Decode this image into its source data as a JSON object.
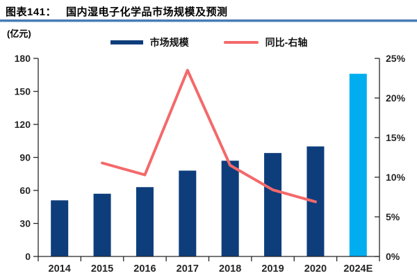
{
  "header": {
    "figure_label": "图表141：",
    "title": "国内湿电子化学品市场规模及预测"
  },
  "axis_unit_label": "(亿元)",
  "legend": [
    {
      "label": "市场规模",
      "marker": "bar-swatch",
      "color": "#0E3D7C"
    },
    {
      "label": "同比-右轴",
      "marker": "line-swatch",
      "color": "#F4696B"
    }
  ],
  "colors": {
    "bar": "#0E3D7C",
    "bar_highlight": "#00AEEF",
    "line": "#F4696B",
    "rule_dark": "#4A7CB5",
    "rule_light": "#9CC2E5",
    "axis": "#262626",
    "text": "#262626"
  },
  "chart_data": {
    "type": "combo",
    "title": "国内湿电子化学品市场规模及预测",
    "categories": [
      "2014",
      "2015",
      "2016",
      "2017",
      "2018",
      "2019",
      "2020",
      "2024E"
    ],
    "series": [
      {
        "name": "市场规模",
        "type": "bar",
        "axis": "left",
        "unit": "亿元",
        "values": [
          51,
          57,
          63,
          78,
          87,
          94,
          100,
          166
        ],
        "highlight_index": 7
      },
      {
        "name": "同比-右轴",
        "type": "line",
        "axis": "right",
        "unit": "%",
        "values": [
          null,
          11.8,
          10.3,
          23.5,
          11.5,
          8.4,
          6.9,
          null
        ]
      }
    ],
    "left_axis": {
      "min": 0,
      "max": 180,
      "tick_step": 30,
      "tick_labels": [
        "0",
        "30",
        "60",
        "90",
        "120",
        "150",
        "180"
      ]
    },
    "right_axis": {
      "min": 0,
      "max": 25,
      "tick_step": 5,
      "tick_labels": [
        "0%",
        "5%",
        "10%",
        "15%",
        "20%",
        "25%"
      ]
    },
    "grid": false,
    "legend_position": "top-center"
  }
}
